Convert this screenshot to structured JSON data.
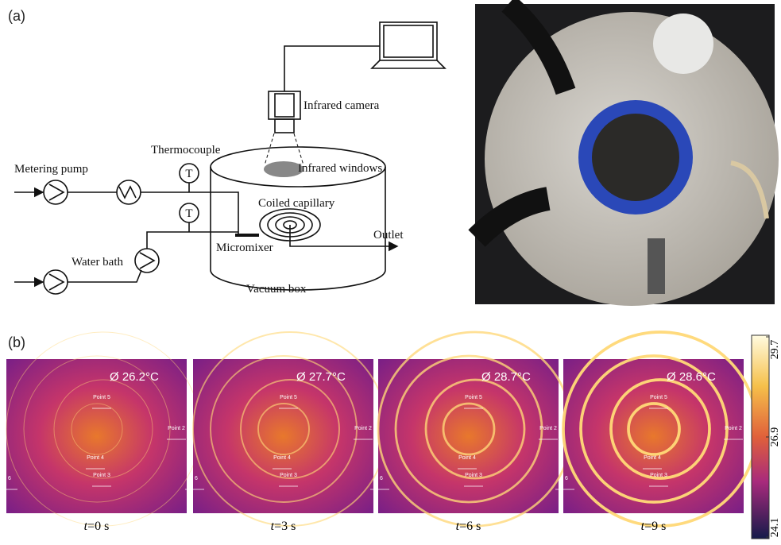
{
  "figure": {
    "label_a": "(a)",
    "label_b": "(b)"
  },
  "schematic": {
    "metering_pump": "Metering pump",
    "thermocouple": "Thermocouple",
    "t1": "T",
    "t2": "T",
    "infrared_camera": "Infrared camera",
    "infrared_windows": "Infrared windows",
    "coiled_capillary": "Coiled capillary",
    "outlet": "Outlet",
    "micromixer": "Micromixer",
    "water_bath": "Water bath",
    "vacuum_box": "Vacuum box"
  },
  "thermal": {
    "panels": [
      {
        "reading": "Ø  26.2°C",
        "time_var": "t",
        "time_rest": "=0 s"
      },
      {
        "reading": "Ø  27.7°C",
        "time_var": "t",
        "time_rest": "=3 s"
      },
      {
        "reading": "Ø  28.7°C",
        "time_var": "t",
        "time_rest": "=6 s"
      },
      {
        "reading": "Ø  28.6°C",
        "time_var": "t",
        "time_rest": "=9 s"
      }
    ],
    "point_labels": [
      "Point 5",
      "Point 4",
      "Point 3",
      "Point 2",
      "6"
    ]
  },
  "colorbar": {
    "ticks": [
      29.7,
      26.9,
      24.1
    ]
  }
}
